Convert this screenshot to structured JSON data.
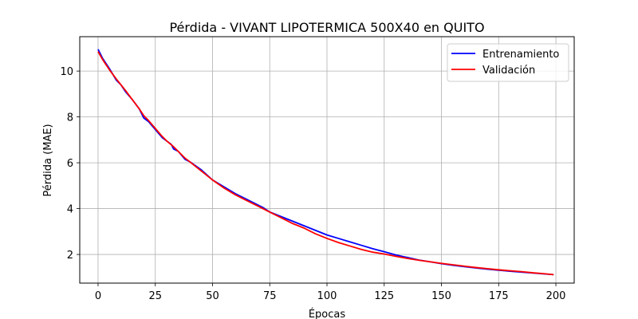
{
  "chart_data": {
    "type": "line",
    "title": "Pérdida - VIVANT LIPOTERMICA 500X40 en QUITO",
    "xlabel": "Épocas",
    "ylabel": "Pérdida (MAE)",
    "xlim": [
      -8,
      208
    ],
    "ylim": [
      0.75,
      11.5
    ],
    "xticks": [
      0,
      25,
      50,
      75,
      100,
      125,
      150,
      175,
      200
    ],
    "yticks": [
      2,
      4,
      6,
      8,
      10
    ],
    "grid": true,
    "legend_position": "top-right",
    "series": [
      {
        "name": "Entrenamiento",
        "color": "#0000ff",
        "x": [
          0,
          2,
          5,
          8,
          10,
          12,
          15,
          18,
          20,
          22,
          25,
          28,
          30,
          32,
          33,
          35,
          38,
          40,
          45,
          50,
          55,
          60,
          65,
          70,
          72,
          75,
          80,
          85,
          90,
          95,
          100,
          105,
          110,
          115,
          120,
          125,
          130,
          135,
          140,
          145,
          150,
          155,
          160,
          165,
          170,
          175,
          180,
          185,
          190,
          195,
          199
        ],
        "y": [
          10.95,
          10.55,
          10.1,
          9.6,
          9.4,
          9.1,
          8.75,
          8.35,
          7.95,
          7.8,
          7.45,
          7.1,
          6.95,
          6.8,
          6.6,
          6.5,
          6.15,
          6.05,
          5.7,
          5.25,
          4.95,
          4.65,
          4.4,
          4.15,
          4.05,
          3.85,
          3.65,
          3.45,
          3.25,
          3.05,
          2.85,
          2.7,
          2.55,
          2.4,
          2.25,
          2.12,
          1.98,
          1.87,
          1.76,
          1.68,
          1.6,
          1.53,
          1.47,
          1.41,
          1.36,
          1.31,
          1.27,
          1.23,
          1.19,
          1.15,
          1.12
        ]
      },
      {
        "name": "Validación",
        "color": "#ff0000",
        "x": [
          0,
          2,
          5,
          8,
          10,
          12,
          15,
          18,
          20,
          22,
          25,
          28,
          30,
          33,
          35,
          38,
          40,
          45,
          50,
          55,
          60,
          65,
          70,
          75,
          80,
          85,
          90,
          95,
          100,
          105,
          110,
          115,
          120,
          125,
          130,
          135,
          140,
          145,
          150,
          155,
          160,
          165,
          170,
          175,
          180,
          185,
          190,
          195,
          199
        ],
        "y": [
          10.85,
          10.5,
          10.05,
          9.65,
          9.4,
          9.15,
          8.75,
          8.35,
          8.05,
          7.85,
          7.5,
          7.15,
          6.95,
          6.7,
          6.5,
          6.2,
          6.05,
          5.65,
          5.25,
          4.9,
          4.6,
          4.35,
          4.1,
          3.85,
          3.6,
          3.35,
          3.15,
          2.9,
          2.7,
          2.52,
          2.37,
          2.22,
          2.1,
          2.02,
          1.92,
          1.83,
          1.75,
          1.68,
          1.61,
          1.55,
          1.49,
          1.43,
          1.38,
          1.33,
          1.29,
          1.25,
          1.2,
          1.16,
          1.12
        ]
      }
    ]
  }
}
